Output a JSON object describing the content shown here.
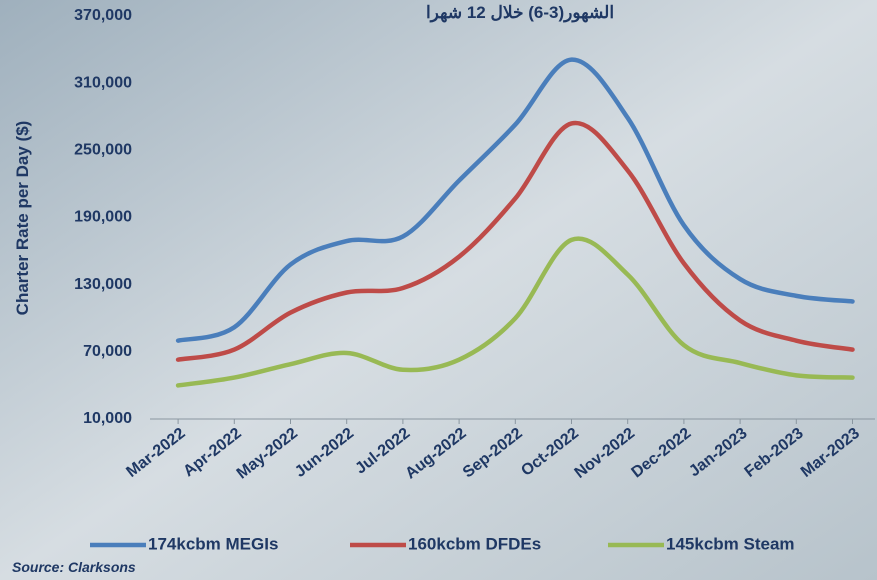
{
  "chart_data": {
    "type": "line",
    "title": "الشهور(3-6) خلال 12 شهرا",
    "y_label": "Charter Rate per Day ($)",
    "source": "Source: Clarksons",
    "categories": [
      "Mar-2022",
      "Apr-2022",
      "May-2022",
      "Jun-2022",
      "Jul-2022",
      "Aug-2022",
      "Sep-2022",
      "Oct-2022",
      "Nov-2022",
      "Dec-2022",
      "Jan-2023",
      "Feb-2023",
      "Mar-2023"
    ],
    "series": [
      {
        "name": "174kcbm MEGIs",
        "color": "#4a7ebb",
        "values": [
          80000,
          92000,
          148000,
          169000,
          173000,
          223000,
          273000,
          331000,
          279000,
          183000,
          135000,
          120000,
          115000
        ]
      },
      {
        "name": "160kcbm DFDEs",
        "color": "#be4b48",
        "values": [
          63000,
          72000,
          105000,
          123000,
          127000,
          155000,
          207000,
          274000,
          232000,
          149000,
          98000,
          80000,
          72000
        ]
      },
      {
        "name": "145kcbm Steam",
        "color": "#98b954",
        "values": [
          40000,
          47000,
          59000,
          69000,
          54000,
          63000,
          100000,
          170000,
          139000,
          76000,
          60000,
          49000,
          47000
        ]
      }
    ],
    "ylim": [
      10000,
      370000
    ],
    "yticks": [
      {
        "value": 10000,
        "label": "10,000"
      },
      {
        "value": 70000,
        "label": "70,000"
      },
      {
        "value": 130000,
        "label": "130,000"
      },
      {
        "value": 190000,
        "label": "190,000"
      },
      {
        "value": 250000,
        "label": "250,000"
      },
      {
        "value": 310000,
        "label": "310,000"
      },
      {
        "value": 370000,
        "label": "370,000"
      }
    ],
    "grid": false,
    "smooth": true,
    "legend": "bottom"
  }
}
